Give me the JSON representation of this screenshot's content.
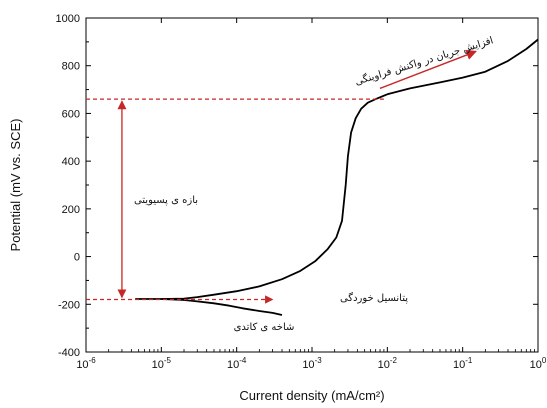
{
  "chart_data": {
    "type": "line",
    "xlabel": "Current density (mA/cm²)",
    "ylabel": "Potential (mV vs. SCE)",
    "xscale": "log",
    "xlim": [
      1e-06,
      1
    ],
    "ylim": [
      -400,
      1000
    ],
    "x_ticks": [
      {
        "value": 1e-06,
        "base": "10",
        "exp": "-6"
      },
      {
        "value": 1e-05,
        "base": "10",
        "exp": "-5"
      },
      {
        "value": 0.0001,
        "base": "10",
        "exp": "-4"
      },
      {
        "value": 0.001,
        "base": "10",
        "exp": "-3"
      },
      {
        "value": 0.01,
        "base": "10",
        "exp": "-2"
      },
      {
        "value": 0.1,
        "base": "10",
        "exp": "-1"
      },
      {
        "value": 1,
        "base": "10",
        "exp": "0"
      }
    ],
    "y_ticks": [
      -400,
      -200,
      0,
      200,
      400,
      600,
      800,
      1000
    ],
    "colors": {
      "curve": "#000000",
      "annotation": "#c62828",
      "axis": "#000000"
    },
    "series": [
      {
        "name": "",
        "x": [
          4.5e-06,
          1e-05,
          2e-05,
          3e-05,
          5e-05,
          0.0001,
          0.0002,
          0.0004,
          0.0007,
          0.0011,
          0.0016,
          0.0021,
          0.0025,
          0.0028,
          0.003,
          0.0033,
          0.0038,
          0.0045,
          0.0055,
          0.007,
          0.01,
          0.02,
          0.05,
          0.1,
          0.2,
          0.4,
          0.7,
          1.0
        ],
        "y": [
          -178,
          -178,
          -176,
          -170,
          -160,
          -145,
          -125,
          -95,
          -60,
          -20,
          30,
          80,
          150,
          300,
          420,
          520,
          580,
          620,
          645,
          660,
          680,
          705,
          730,
          750,
          775,
          820,
          870,
          910
        ]
      },
      {
        "name": "",
        "x": [
          1e-05,
          2e-05,
          3e-05,
          5e-05,
          8e-05,
          0.00012,
          0.0002,
          0.0003,
          0.0004
        ],
        "y": [
          -178,
          -182,
          -188,
          -196,
          -206,
          -217,
          -228,
          -236,
          -245
        ]
      }
    ],
    "corrosion_potential_mV": -180,
    "passive_limit_mV": 660,
    "annotations": [
      {
        "id": "oxygen",
        "text": "افزایش جریان در واکنش فراوینگی"
      },
      {
        "id": "passivity",
        "text": "بازه ی پسیویتی"
      },
      {
        "id": "corrosion",
        "text": "پتانسیل خوردگی"
      },
      {
        "id": "cathodic",
        "text": "شاخه ی کاتدی"
      }
    ]
  }
}
